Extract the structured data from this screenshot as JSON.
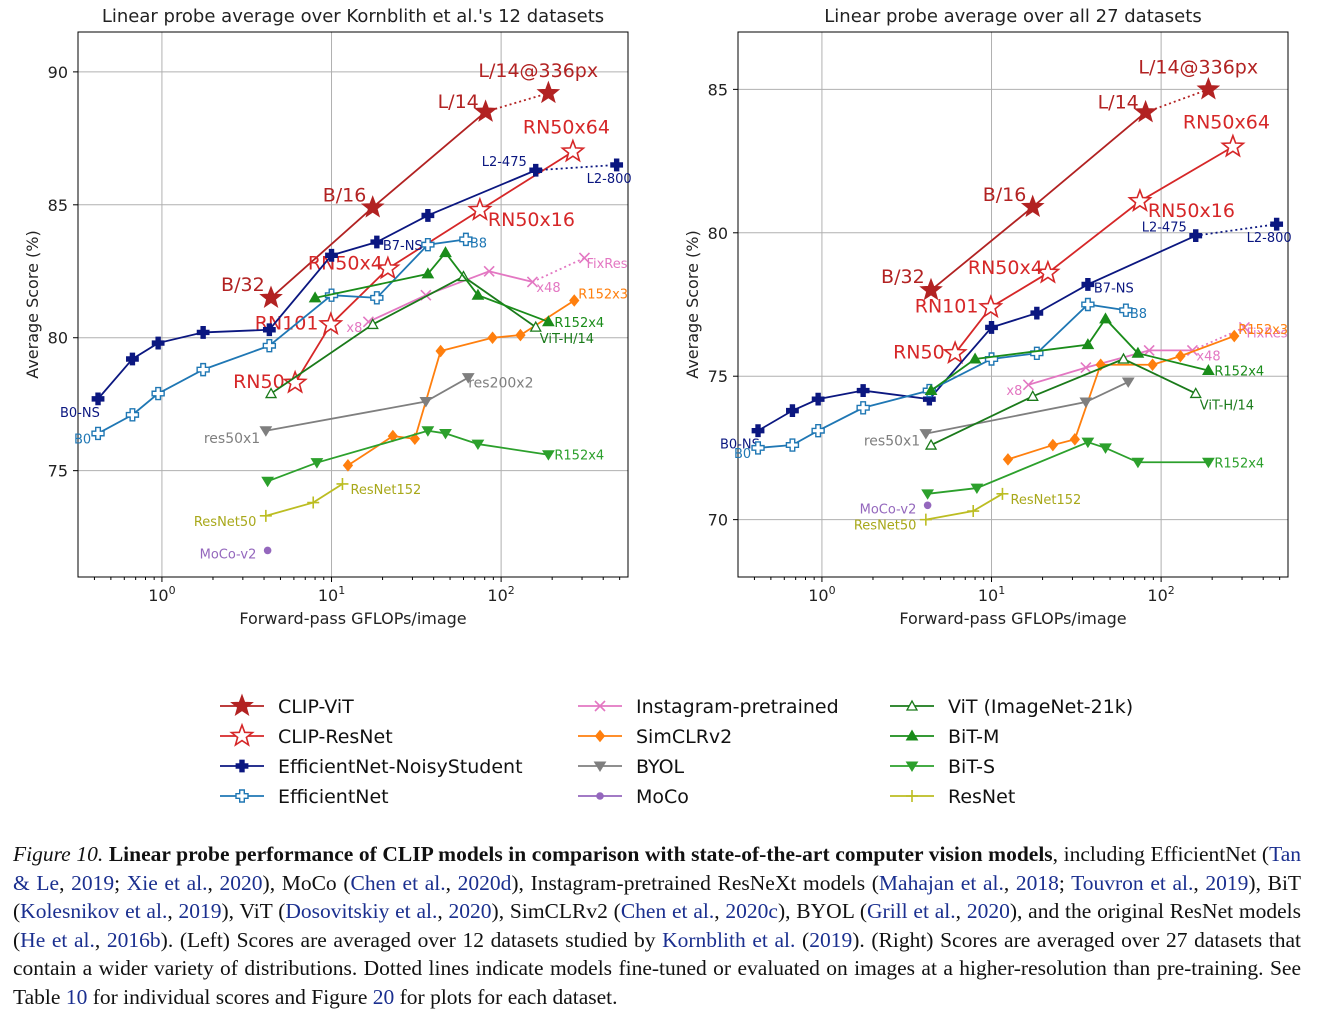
{
  "chart_data": [
    {
      "type": "line",
      "title": "Linear probe average over Kornblith et al.'s 12 datasets",
      "xlabel": "Forward-pass GFLOPs/image",
      "ylabel": "Average Score (%)",
      "xscale": "log",
      "xlim": [
        0.32,
        560
      ],
      "ylim": [
        71,
        91.5
      ],
      "yticks": [
        75,
        80,
        85,
        90
      ],
      "xticks": [
        1,
        10,
        100
      ],
      "grid": true,
      "series": [
        {
          "name": "CLIP-ViT",
          "color": "#b22222",
          "marker": "star",
          "solid": true,
          "x": [
            4.4,
            17.5,
            81
          ],
          "y": [
            81.5,
            84.9,
            88.5
          ],
          "labels": [
            "B/32",
            "B/16",
            "L/14"
          ],
          "dotted_x": [
            81,
            190
          ],
          "dotted_y": [
            88.5,
            89.2
          ],
          "dotted_labels": [
            "",
            "L/14@336px"
          ]
        },
        {
          "name": "CLIP-ResNet",
          "color": "#d62728",
          "marker": "star-open",
          "x": [
            6.1,
            9.9,
            21.5,
            75,
            265
          ],
          "y": [
            78.3,
            80.5,
            82.6,
            84.8,
            87.0
          ],
          "labels": [
            "RN50",
            "RN101",
            "RN50x4",
            "RN50x16",
            "RN50x64"
          ]
        },
        {
          "name": "EfficientNet-NoisyStudent",
          "color": "#0b1780",
          "marker": "plus-filled",
          "x": [
            0.42,
            0.67,
            0.95,
            1.75,
            4.3,
            10,
            18.5,
            37,
            160
          ],
          "y": [
            77.7,
            79.2,
            79.8,
            80.2,
            80.3,
            83.1,
            83.6,
            84.6,
            86.3
          ],
          "labels": [
            "B0-NS",
            "",
            "",
            "",
            "",
            "",
            "B7-NS",
            "",
            "L2-475"
          ],
          "dotted_x": [
            160,
            480
          ],
          "dotted_y": [
            86.3,
            86.5
          ],
          "dotted_labels": [
            "",
            "L2-800"
          ]
        },
        {
          "name": "EfficientNet",
          "color": "#1f77b4",
          "marker": "plus-open",
          "x": [
            0.42,
            0.67,
            0.95,
            1.75,
            4.3,
            10,
            18.5,
            37,
            62
          ],
          "y": [
            76.4,
            77.1,
            77.9,
            78.8,
            79.7,
            81.6,
            81.5,
            83.5,
            83.7
          ],
          "labels": [
            "B0",
            "",
            "",
            "",
            "",
            "",
            "",
            "",
            "B8"
          ]
        },
        {
          "name": "Instagram-pretrained",
          "color": "#e377c2",
          "marker": "x",
          "x": [
            16.5,
            36,
            85,
            153
          ],
          "y": [
            80.6,
            81.6,
            82.5,
            82.1
          ],
          "labels": [
            "x8",
            "",
            "",
            "x48"
          ],
          "dotted_x": [
            153,
            310
          ],
          "dotted_y": [
            82.1,
            83.0
          ],
          "dotted_labels": [
            "",
            "FixRes"
          ]
        },
        {
          "name": "SimCLRv2",
          "color": "#ff7f0e",
          "marker": "diamond",
          "x": [
            12.5,
            23,
            31,
            44,
            89,
            130,
            270
          ],
          "y": [
            75.2,
            76.3,
            76.2,
            79.5,
            80.0,
            80.1,
            81.4
          ],
          "labels": [
            "",
            "",
            "",
            "",
            "",
            "",
            "R152x3"
          ]
        },
        {
          "name": "BYOL",
          "color": "#7f7f7f",
          "marker": "tri-down",
          "x": [
            4.1,
            36,
            64
          ],
          "y": [
            76.5,
            77.6,
            78.5
          ],
          "labels": [
            "res50x1",
            "",
            "res200x2"
          ]
        },
        {
          "name": "MoCo",
          "color": "#9467bd",
          "marker": "circle",
          "x": [
            4.2
          ],
          "y": [
            72.0
          ],
          "labels": [
            "MoCo-v2"
          ]
        },
        {
          "name": "ViT (ImageNet-21k)",
          "color": "#1a7a1a",
          "marker": "tri-up-open",
          "x": [
            4.4,
            17.5,
            60,
            160
          ],
          "y": [
            77.9,
            80.5,
            82.3,
            80.4
          ],
          "labels": [
            "",
            "",
            "",
            "ViT-H/14"
          ]
        },
        {
          "name": "BiT-M",
          "color": "#1a8c1a",
          "marker": "tri-up",
          "x": [
            8.0,
            37,
            47,
            73,
            190
          ],
          "y": [
            81.5,
            82.4,
            83.2,
            81.6,
            80.6
          ],
          "labels": [
            "",
            "",
            "",
            "",
            "R152x4"
          ]
        },
        {
          "name": "BiT-S",
          "color": "#2ca02c",
          "marker": "tri-down",
          "x": [
            4.2,
            8.2,
            37,
            47,
            73,
            190
          ],
          "y": [
            74.6,
            75.3,
            76.5,
            76.4,
            76.0,
            75.6
          ],
          "labels": [
            "",
            "",
            "",
            "",
            "",
            "R152x4"
          ]
        },
        {
          "name": "ResNet",
          "color": "#bcbd22",
          "marker": "plus-thin",
          "x": [
            4.1,
            7.8,
            11.6
          ],
          "y": [
            73.3,
            73.8,
            74.5
          ],
          "labels": [
            "ResNet50",
            "",
            "ResNet152"
          ]
        }
      ]
    },
    {
      "type": "line",
      "title": "Linear probe average over all 27 datasets",
      "xlabel": "Forward-pass GFLOPs/image",
      "ylabel": "Average Score (%)",
      "xscale": "log",
      "xlim": [
        0.32,
        560
      ],
      "ylim": [
        68,
        87
      ],
      "yticks": [
        70,
        75,
        80,
        85
      ],
      "xticks": [
        1,
        10,
        100
      ],
      "grid": true,
      "series": [
        {
          "name": "CLIP-ViT",
          "color": "#b22222",
          "marker": "star",
          "solid": true,
          "x": [
            4.4,
            17.5,
            81
          ],
          "y": [
            78.0,
            80.9,
            84.2
          ],
          "labels": [
            "B/32",
            "B/16",
            "L/14"
          ],
          "dotted_x": [
            81,
            190
          ],
          "dotted_y": [
            84.2,
            85.0
          ],
          "dotted_labels": [
            "",
            "L/14@336px"
          ]
        },
        {
          "name": "CLIP-ResNet",
          "color": "#d62728",
          "marker": "star-open",
          "x": [
            6.1,
            9.9,
            21.5,
            75,
            265
          ],
          "y": [
            75.8,
            77.4,
            78.6,
            81.1,
            83.0
          ],
          "labels": [
            "RN50",
            "RN101",
            "RN50x4",
            "RN50x16",
            "RN50x64"
          ]
        },
        {
          "name": "EfficientNet-NoisyStudent",
          "color": "#0b1780",
          "marker": "plus-filled",
          "x": [
            0.42,
            0.67,
            0.95,
            1.75,
            4.3,
            10,
            18.5,
            37,
            160
          ],
          "y": [
            73.1,
            73.8,
            74.2,
            74.5,
            74.2,
            76.7,
            77.2,
            78.2,
            79.9
          ],
          "labels": [
            "B0-NS",
            "",
            "",
            "",
            "",
            "",
            "",
            "B7-NS",
            "L2-475"
          ],
          "dotted_x": [
            160,
            480
          ],
          "dotted_y": [
            79.9,
            80.3
          ],
          "dotted_labels": [
            "",
            "L2-800"
          ]
        },
        {
          "name": "EfficientNet",
          "color": "#1f77b4",
          "marker": "plus-open",
          "x": [
            0.42,
            0.67,
            0.95,
            1.75,
            4.3,
            10,
            18.5,
            37,
            62
          ],
          "y": [
            72.5,
            72.6,
            73.1,
            73.9,
            74.5,
            75.6,
            75.8,
            77.5,
            77.3
          ],
          "labels": [
            "B0",
            "",
            "",
            "",
            "",
            "",
            "",
            "",
            "B8"
          ]
        },
        {
          "name": "Instagram-pretrained",
          "color": "#e377c2",
          "marker": "x",
          "x": [
            16.5,
            36,
            85,
            153
          ],
          "y": [
            74.7,
            75.3,
            75.9,
            75.9
          ],
          "labels": [
            "x8",
            "",
            "",
            "x48"
          ],
          "dotted_x": [
            153,
            310
          ],
          "dotted_y": [
            75.9,
            76.7
          ],
          "dotted_labels": [
            "",
            "FixRes"
          ]
        },
        {
          "name": "SimCLRv2",
          "color": "#ff7f0e",
          "marker": "diamond",
          "x": [
            12.5,
            23,
            31,
            44,
            89,
            130,
            270
          ],
          "y": [
            72.1,
            72.6,
            72.8,
            75.4,
            75.4,
            75.7,
            76.4
          ],
          "labels": [
            "",
            "",
            "",
            "",
            "",
            "",
            "R152x3"
          ]
        },
        {
          "name": "BYOL",
          "color": "#7f7f7f",
          "marker": "tri-down",
          "x": [
            4.1,
            36,
            64
          ],
          "y": [
            73.0,
            74.1,
            74.8
          ],
          "labels": [
            "res50x1",
            "",
            ""
          ]
        },
        {
          "name": "MoCo",
          "color": "#9467bd",
          "marker": "circle",
          "x": [
            4.2
          ],
          "y": [
            70.5
          ],
          "labels": [
            "MoCo-v2"
          ]
        },
        {
          "name": "ViT (ImageNet-21k)",
          "color": "#1a7a1a",
          "marker": "tri-up-open",
          "x": [
            4.4,
            17.5,
            60,
            160
          ],
          "y": [
            72.6,
            74.3,
            75.6,
            74.4
          ],
          "labels": [
            "",
            "",
            "",
            "ViT-H/14"
          ]
        },
        {
          "name": "BiT-M",
          "color": "#1a8c1a",
          "marker": "tri-up",
          "x": [
            4.4,
            8.0,
            37,
            47,
            73,
            190
          ],
          "y": [
            74.5,
            75.6,
            76.1,
            77.0,
            75.8,
            75.2
          ],
          "labels": [
            "",
            "",
            "",
            "",
            "",
            "R152x4"
          ]
        },
        {
          "name": "BiT-S",
          "color": "#2ca02c",
          "marker": "tri-down",
          "x": [
            4.2,
            8.2,
            37,
            47,
            73,
            190
          ],
          "y": [
            70.9,
            71.1,
            72.7,
            72.5,
            72.0,
            72.0
          ],
          "labels": [
            "",
            "",
            "",
            "",
            "",
            "R152x4"
          ]
        },
        {
          "name": "ResNet",
          "color": "#bcbd22",
          "marker": "plus-thin",
          "x": [
            4.1,
            7.8,
            11.6
          ],
          "y": [
            70.0,
            70.3,
            70.9
          ],
          "labels": [
            "ResNet50",
            "",
            "ResNet152"
          ]
        }
      ]
    }
  ],
  "legend": [
    {
      "name": "CLIP-ViT",
      "color": "#b22222",
      "marker": "star"
    },
    {
      "name": "CLIP-ResNet",
      "color": "#d62728",
      "marker": "star-open"
    },
    {
      "name": "EfficientNet-NoisyStudent",
      "color": "#0b1780",
      "marker": "plus-filled"
    },
    {
      "name": "EfficientNet",
      "color": "#1f77b4",
      "marker": "plus-open"
    },
    {
      "name": "Instagram-pretrained",
      "color": "#e377c2",
      "marker": "x"
    },
    {
      "name": "SimCLRv2",
      "color": "#ff7f0e",
      "marker": "diamond"
    },
    {
      "name": "BYOL",
      "color": "#7f7f7f",
      "marker": "tri-down"
    },
    {
      "name": "MoCo",
      "color": "#9467bd",
      "marker": "circle"
    },
    {
      "name": "ViT (ImageNet-21k)",
      "color": "#1a7a1a",
      "marker": "tri-up-open"
    },
    {
      "name": "BiT-M",
      "color": "#1a8c1a",
      "marker": "tri-up"
    },
    {
      "name": "BiT-S",
      "color": "#2ca02c",
      "marker": "tri-down"
    },
    {
      "name": "ResNet",
      "color": "#bcbd22",
      "marker": "plus-thin"
    }
  ],
  "caption": {
    "label": "Figure 10.",
    "bold": "Linear probe performance of CLIP models in comparison with state-of-the-art computer vision models",
    "t1": ", including EfficientNet (",
    "r1": "Tan & Le",
    "t2": ", ",
    "r2": "2019",
    "t3": "; ",
    "r3": "Xie et al.",
    "t4": ", ",
    "r4": "2020",
    "t5": "), MoCo (",
    "r5": "Chen et al.",
    "t6": ", ",
    "r6": "2020d",
    "t7": "), Instagram-pretrained ResNeXt models (",
    "r7": "Mahajan et al.",
    "t8": ", ",
    "r8": "2018",
    "t9": "; ",
    "r9": "Touvron et al.",
    "t10": ", ",
    "r10": "2019",
    "t11": "), BiT (",
    "r11": "Kolesnikov et al.",
    "t12": ", ",
    "r12": "2019",
    "t13": "), ViT (",
    "r13": "Dosovitskiy et al.",
    "t14": ", ",
    "r14": "2020",
    "t15": "), SimCLRv2 (",
    "r15": "Chen et al.",
    "t16": ", ",
    "r16": "2020c",
    "t17": "), BYOL (",
    "r17": "Grill et al.",
    "t18": ", ",
    "r18": "2020",
    "t19": "), and the original ResNet models (",
    "r19": "He et al.",
    "t20": ", ",
    "r20": "2016b",
    "t21": "). (Left) Scores are averaged over 12 datasets studied by ",
    "r21": "Kornblith et al.",
    "t22": " (",
    "r22": "2019",
    "t23": "). (Right) Scores are averaged over 27 datasets that contain a wider variety of distributions. Dotted lines indicate models fine-tuned or evaluated on images at a higher-resolution than pre-training. See Table ",
    "r23": "10",
    "t24": " for individual scores and Figure ",
    "r24": "20",
    "t25": " for plots for each dataset."
  }
}
